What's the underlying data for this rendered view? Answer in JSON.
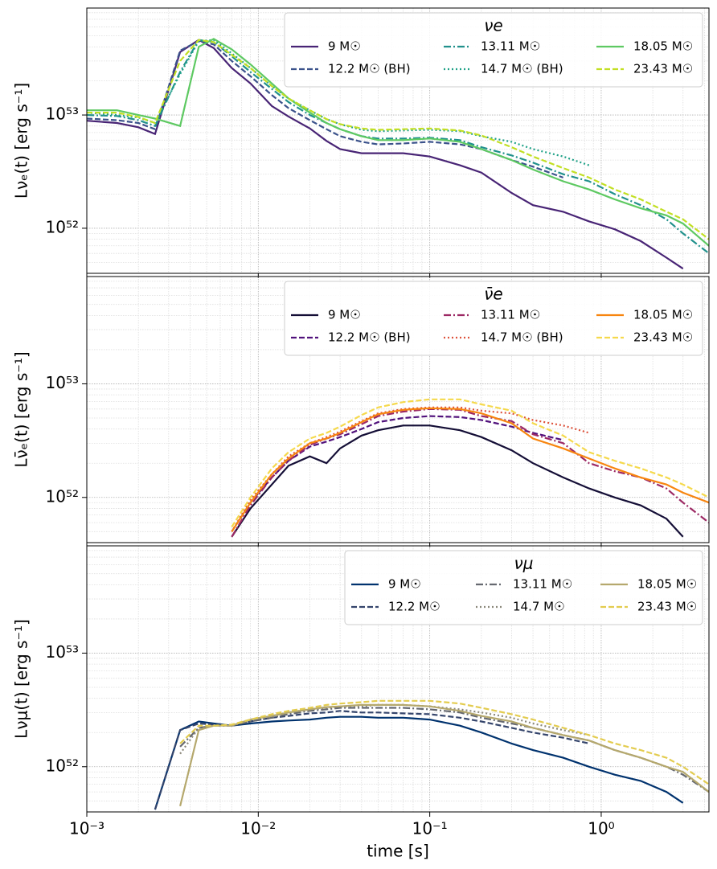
{
  "chart_data": [
    {
      "type": "line",
      "ylabel": "Lνₑ(t) [erg s⁻¹]",
      "legend_title": "νe",
      "legend_loc": "upper right",
      "xscale": "log",
      "yscale": "log",
      "grid": true,
      "xlim": [
        0.001,
        4.25
      ],
      "ylim": [
        4e+51,
        8.8e+53
      ],
      "yticks": [
        {
          "value": 1e+52,
          "label": "10⁵²"
        },
        {
          "value": 1e+53,
          "label": "10⁵³"
        }
      ],
      "x": [
        0.001,
        0.0015,
        0.002,
        0.0025,
        0.0035,
        0.0045,
        0.0055,
        0.007,
        0.009,
        0.012,
        0.015,
        0.02,
        0.025,
        0.03,
        0.04,
        0.05,
        0.07,
        0.1,
        0.15,
        0.2,
        0.3,
        0.4,
        0.6,
        0.85,
        1.2,
        1.7,
        2.4,
        3.0,
        4.25
      ],
      "series": [
        {
          "name": "9 M☉",
          "color": "#482475",
          "linestyle": "solid",
          "values": [
            8.9e+52,
            8.5e+52,
            7.8e+52,
            6.8e+52,
            3.6e+53,
            4.6e+53,
            3.9e+53,
            2.6e+53,
            1.9e+53,
            1.2e+53,
            9.7e+52,
            7.6e+52,
            5.9e+52,
            5e+52,
            4.6e+52,
            4.6e+52,
            4.6e+52,
            4.3e+52,
            3.6e+52,
            3.1e+52,
            2.05e+52,
            1.6e+52,
            1.4e+52,
            1.15e+52,
            9.8e+51,
            7.7e+51,
            5.5e+51,
            4.4e+51,
            null
          ]
        },
        {
          "name": "12.2 M☉ (BH)",
          "color": "#3b528b",
          "linestyle": "dashed",
          "values": [
            9.3e+52,
            9e+52,
            8.5e+52,
            7.5e+52,
            3.7e+53,
            4.5e+53,
            4.2e+53,
            3e+53,
            2.2e+53,
            1.5e+53,
            1.15e+53,
            9e+52,
            7.5e+52,
            6.5e+52,
            5.8e+52,
            5.5e+52,
            5.6e+52,
            5.8e+52,
            5.5e+52,
            5e+52,
            4e+52,
            3.5e+52,
            2.8e+52,
            null,
            null,
            null,
            null,
            null,
            null
          ]
        },
        {
          "name": "13.11 M☉",
          "color": "#21918c",
          "linestyle": "dashdot",
          "values": [
            1e+53,
            9.8e+52,
            9e+52,
            8e+52,
            2.4e+53,
            4.6e+53,
            4.4e+53,
            3.3e+53,
            2.4e+53,
            1.7e+53,
            1.3e+53,
            1e+53,
            8.5e+52,
            7.5e+52,
            6.5e+52,
            6.2e+52,
            6.2e+52,
            6.3e+52,
            6e+52,
            5.2e+52,
            4.4e+52,
            3.8e+52,
            3e+52,
            2.6e+52,
            2e+52,
            1.6e+52,
            1.2e+52,
            9e+51,
            6e+51
          ]
        },
        {
          "name": "14.7 M☉ (BH)",
          "color": "#1fa187",
          "linestyle": "dotted",
          "values": [
            1.05e+53,
            1e+53,
            9.5e+52,
            8.5e+52,
            2.3e+53,
            4.5e+53,
            4.6e+53,
            3.5e+53,
            2.6e+53,
            1.8e+53,
            1.4e+53,
            1.1e+53,
            9.2e+52,
            8.3e+52,
            7.4e+52,
            7.2e+52,
            7.3e+52,
            7.4e+52,
            7.2e+52,
            6.5e+52,
            5.8e+52,
            5e+52,
            4.3e+52,
            3.6e+52,
            null,
            null,
            null,
            null,
            null
          ]
        },
        {
          "name": "18.05 M☉",
          "color": "#5ec962",
          "linestyle": "solid",
          "values": [
            1.1e+53,
            1.1e+53,
            1e+53,
            9.3e+52,
            8e+52,
            4e+53,
            4.7e+53,
            3.8e+53,
            2.8e+53,
            1.9e+53,
            1.4e+53,
            1.05e+53,
            8.5e+52,
            7.5e+52,
            6.5e+52,
            6e+52,
            6e+52,
            6.2e+52,
            5.8e+52,
            5e+52,
            4e+52,
            3.3e+52,
            2.6e+52,
            2.2e+52,
            1.8e+52,
            1.5e+52,
            1.3e+52,
            1.1e+52,
            7e+51
          ]
        },
        {
          "name": "23.43 M☉",
          "color": "#c2df23",
          "linestyle": "dashed",
          "values": [
            1.05e+53,
            1.05e+53,
            9.6e+52,
            8.5e+52,
            3e+53,
            4.6e+53,
            4.4e+53,
            3.4e+53,
            2.6e+53,
            1.8e+53,
            1.4e+53,
            1.1e+53,
            9.2e+52,
            8.3e+52,
            7.6e+52,
            7.4e+52,
            7.5e+52,
            7.6e+52,
            7.3e+52,
            6.6e+52,
            5.2e+52,
            4.3e+52,
            3.4e+52,
            2.8e+52,
            2.2e+52,
            1.8e+52,
            1.4e+52,
            1.2e+52,
            8e+51
          ]
        }
      ]
    },
    {
      "type": "line",
      "ylabel": "Lν̄ₑ(t) [erg s⁻¹]",
      "legend_title": "ν̄e",
      "legend_loc": "upper right",
      "xscale": "log",
      "yscale": "log",
      "grid": true,
      "xlim": [
        0.001,
        4.25
      ],
      "ylim": [
        4e+51,
        8.8e+53
      ],
      "yticks": [
        {
          "value": 1e+52,
          "label": "10⁵²"
        },
        {
          "value": 1e+53,
          "label": "10⁵³"
        }
      ],
      "x": [
        0.001,
        0.0015,
        0.002,
        0.0025,
        0.0035,
        0.0045,
        0.0055,
        0.007,
        0.009,
        0.012,
        0.015,
        0.02,
        0.025,
        0.03,
        0.04,
        0.05,
        0.07,
        0.1,
        0.15,
        0.2,
        0.3,
        0.4,
        0.6,
        0.85,
        1.2,
        1.7,
        2.4,
        3.0,
        4.25
      ],
      "series": [
        {
          "name": "9 M☉",
          "color": "#140e36",
          "linestyle": "solid",
          "values": [
            null,
            null,
            null,
            null,
            null,
            null,
            null,
            4.5e+51,
            8e+51,
            1.3e+52,
            1.9e+52,
            2.3e+52,
            2e+52,
            2.7e+52,
            3.5e+52,
            3.9e+52,
            4.3e+52,
            4.3e+52,
            3.9e+52,
            3.4e+52,
            2.6e+52,
            2e+52,
            1.5e+52,
            1.2e+52,
            1e+52,
            8.5e+51,
            6.5e+51,
            4.5e+51,
            null
          ]
        },
        {
          "name": "12.2 M☉ (BH)",
          "color": "#51127c",
          "linestyle": "dashed",
          "values": [
            null,
            null,
            null,
            null,
            null,
            null,
            null,
            5e+51,
            9e+51,
            1.5e+52,
            2.1e+52,
            2.8e+52,
            3.1e+52,
            3.4e+52,
            4e+52,
            4.6e+52,
            5e+52,
            5.2e+52,
            5.1e+52,
            4.8e+52,
            4.2e+52,
            3.7e+52,
            3.2e+52,
            null,
            null,
            null,
            null,
            null,
            null
          ]
        },
        {
          "name": "13.11 M☉",
          "color": "#9c2964",
          "linestyle": "dashdot",
          "values": [
            null,
            null,
            null,
            null,
            null,
            null,
            null,
            4.5e+51,
            8.5e+51,
            1.5e+52,
            2.1e+52,
            2.9e+52,
            3.3e+52,
            3.6e+52,
            4.4e+52,
            5.2e+52,
            5.7e+52,
            6e+52,
            5.9e+52,
            5.2e+52,
            4.7e+52,
            3.6e+52,
            3e+52,
            2e+52,
            1.7e+52,
            1.5e+52,
            1.2e+52,
            9e+51,
            6e+51
          ]
        },
        {
          "name": "14.7 M☉ (BH)",
          "color": "#dd513a",
          "linestyle": "dotted",
          "values": [
            null,
            null,
            null,
            null,
            null,
            null,
            null,
            5e+51,
            9.5e+51,
            1.6e+52,
            2.3e+52,
            3e+52,
            3.4e+52,
            3.8e+52,
            4.7e+52,
            5.5e+52,
            6e+52,
            6.2e+52,
            6.2e+52,
            5.8e+52,
            5.5e+52,
            4.8e+52,
            4.3e+52,
            3.7e+52,
            null,
            null,
            null,
            null,
            null
          ]
        },
        {
          "name": "18.05 M☉",
          "color": "#f7850f",
          "linestyle": "solid",
          "values": [
            null,
            null,
            null,
            null,
            null,
            null,
            null,
            5e+51,
            9e+51,
            1.6e+52,
            2.2e+52,
            3e+52,
            3.3e+52,
            3.7e+52,
            4.6e+52,
            5.4e+52,
            5.9e+52,
            6.1e+52,
            6e+52,
            5.5e+52,
            4.5e+52,
            3.3e+52,
            2.7e+52,
            2.2e+52,
            1.8e+52,
            1.5e+52,
            1.3e+52,
            1.1e+52,
            9e+51
          ]
        },
        {
          "name": "23.43 M☉",
          "color": "#f5d94c",
          "linestyle": "dashed",
          "values": [
            null,
            null,
            null,
            null,
            null,
            null,
            null,
            5.5e+51,
            1e+52,
            1.8e+52,
            2.5e+52,
            3.3e+52,
            3.7e+52,
            4.2e+52,
            5.3e+52,
            6.2e+52,
            6.9e+52,
            7.3e+52,
            7.3e+52,
            6.6e+52,
            5.8e+52,
            4.5e+52,
            3.5e+52,
            2.5e+52,
            2.1e+52,
            1.8e+52,
            1.5e+52,
            1.3e+52,
            1e+52
          ]
        }
      ]
    },
    {
      "type": "line",
      "ylabel": "Lνμ(t) [erg s⁻¹]",
      "xlabel": "time [s]",
      "legend_title": "νμ",
      "legend_loc": "upper right",
      "xscale": "log",
      "yscale": "log",
      "grid": true,
      "xlim": [
        0.001,
        4.25
      ],
      "ylim": [
        4e+51,
        8.8e+53
      ],
      "xticks": [
        {
          "value": 0.001,
          "label": "10⁻³"
        },
        {
          "value": 0.01,
          "label": "10⁻²"
        },
        {
          "value": 0.1,
          "label": "10⁻¹"
        },
        {
          "value": 1,
          "label": "10⁰"
        }
      ],
      "yticks": [
        {
          "value": 1e+52,
          "label": "10⁵²"
        },
        {
          "value": 1e+53,
          "label": "10⁵³"
        }
      ],
      "x": [
        0.001,
        0.0015,
        0.002,
        0.0025,
        0.0035,
        0.0045,
        0.0055,
        0.007,
        0.009,
        0.012,
        0.015,
        0.02,
        0.025,
        0.03,
        0.04,
        0.05,
        0.07,
        0.1,
        0.15,
        0.2,
        0.3,
        0.4,
        0.6,
        0.85,
        1.2,
        1.7,
        2.4,
        3.0,
        4.25
      ],
      "series": [
        {
          "name": "9 M☉",
          "color": "#00326e",
          "linestyle": "solid",
          "values": [
            null,
            null,
            null,
            4.2e+51,
            2.1e+52,
            2.5e+52,
            2.4e+52,
            2.3e+52,
            2.4e+52,
            2.5e+52,
            2.55e+52,
            2.6e+52,
            2.7e+52,
            2.75e+52,
            2.75e+52,
            2.7e+52,
            2.7e+52,
            2.6e+52,
            2.3e+52,
            2e+52,
            1.6e+52,
            1.4e+52,
            1.2e+52,
            1e+52,
            8.5e+51,
            7.5e+51,
            6e+51,
            4.8e+51,
            null
          ]
        },
        {
          "name": "12.2 M☉",
          "color": "#35456c",
          "linestyle": "dashed",
          "values": [
            null,
            null,
            null,
            4.2e+51,
            2.1e+52,
            2.4e+52,
            2.35e+52,
            2.3e+52,
            2.5e+52,
            2.7e+52,
            2.8e+52,
            2.95e+52,
            3e+52,
            3.1e+52,
            3e+52,
            3e+52,
            2.95e+52,
            2.9e+52,
            2.7e+52,
            2.5e+52,
            2.2e+52,
            2e+52,
            1.8e+52,
            1.6e+52,
            null,
            null,
            null,
            null,
            null
          ]
        },
        {
          "name": "13.11 M☉",
          "color": "#666970",
          "linestyle": "dashdot",
          "values": [
            null,
            null,
            null,
            null,
            1.5e+52,
            2.2e+52,
            2.3e+52,
            2.3e+52,
            2.5e+52,
            2.7e+52,
            2.9e+52,
            3.1e+52,
            3.2e+52,
            3.3e+52,
            3.3e+52,
            3.3e+52,
            3.3e+52,
            3.2e+52,
            3e+52,
            2.7e+52,
            2.4e+52,
            2.2e+52,
            1.9e+52,
            1.7e+52,
            1.4e+52,
            1.2e+52,
            1e+52,
            8.5e+51,
            6e+51
          ]
        },
        {
          "name": "14.7 M☉",
          "color": "#8a8779",
          "linestyle": "dotted",
          "values": [
            null,
            null,
            null,
            null,
            1.3e+52,
            2.2e+52,
            2.3e+52,
            2.3e+52,
            2.6e+52,
            2.8e+52,
            3e+52,
            3.2e+52,
            3.3e+52,
            3.4e+52,
            3.4e+52,
            3.5e+52,
            3.5e+52,
            3.4e+52,
            3.2e+52,
            3e+52,
            2.7e+52,
            2.4e+52,
            2.1e+52,
            1.9e+52,
            null,
            null,
            null,
            null,
            null
          ]
        },
        {
          "name": "18.05 M☉",
          "color": "#b5a86d",
          "linestyle": "solid",
          "values": [
            null,
            null,
            null,
            null,
            4.5e+51,
            2.1e+52,
            2.3e+52,
            2.3e+52,
            2.6e+52,
            2.8e+52,
            3e+52,
            3.2e+52,
            3.35e+52,
            3.4e+52,
            3.5e+52,
            3.5e+52,
            3.5e+52,
            3.4e+52,
            3.1e+52,
            2.8e+52,
            2.5e+52,
            2.2e+52,
            1.9e+52,
            1.7e+52,
            1.4e+52,
            1.2e+52,
            1e+52,
            9e+51,
            6e+51
          ]
        },
        {
          "name": "23.43 M☉",
          "color": "#e3cc4f",
          "linestyle": "dashed",
          "values": [
            null,
            null,
            null,
            null,
            1.6e+52,
            2.3e+52,
            2.3e+52,
            2.35e+52,
            2.6e+52,
            2.9e+52,
            3.1e+52,
            3.3e+52,
            3.5e+52,
            3.6e+52,
            3.7e+52,
            3.8e+52,
            3.8e+52,
            3.8e+52,
            3.6e+52,
            3.3e+52,
            2.9e+52,
            2.6e+52,
            2.2e+52,
            1.9e+52,
            1.6e+52,
            1.4e+52,
            1.2e+52,
            1e+52,
            7e+51
          ]
        }
      ]
    }
  ]
}
